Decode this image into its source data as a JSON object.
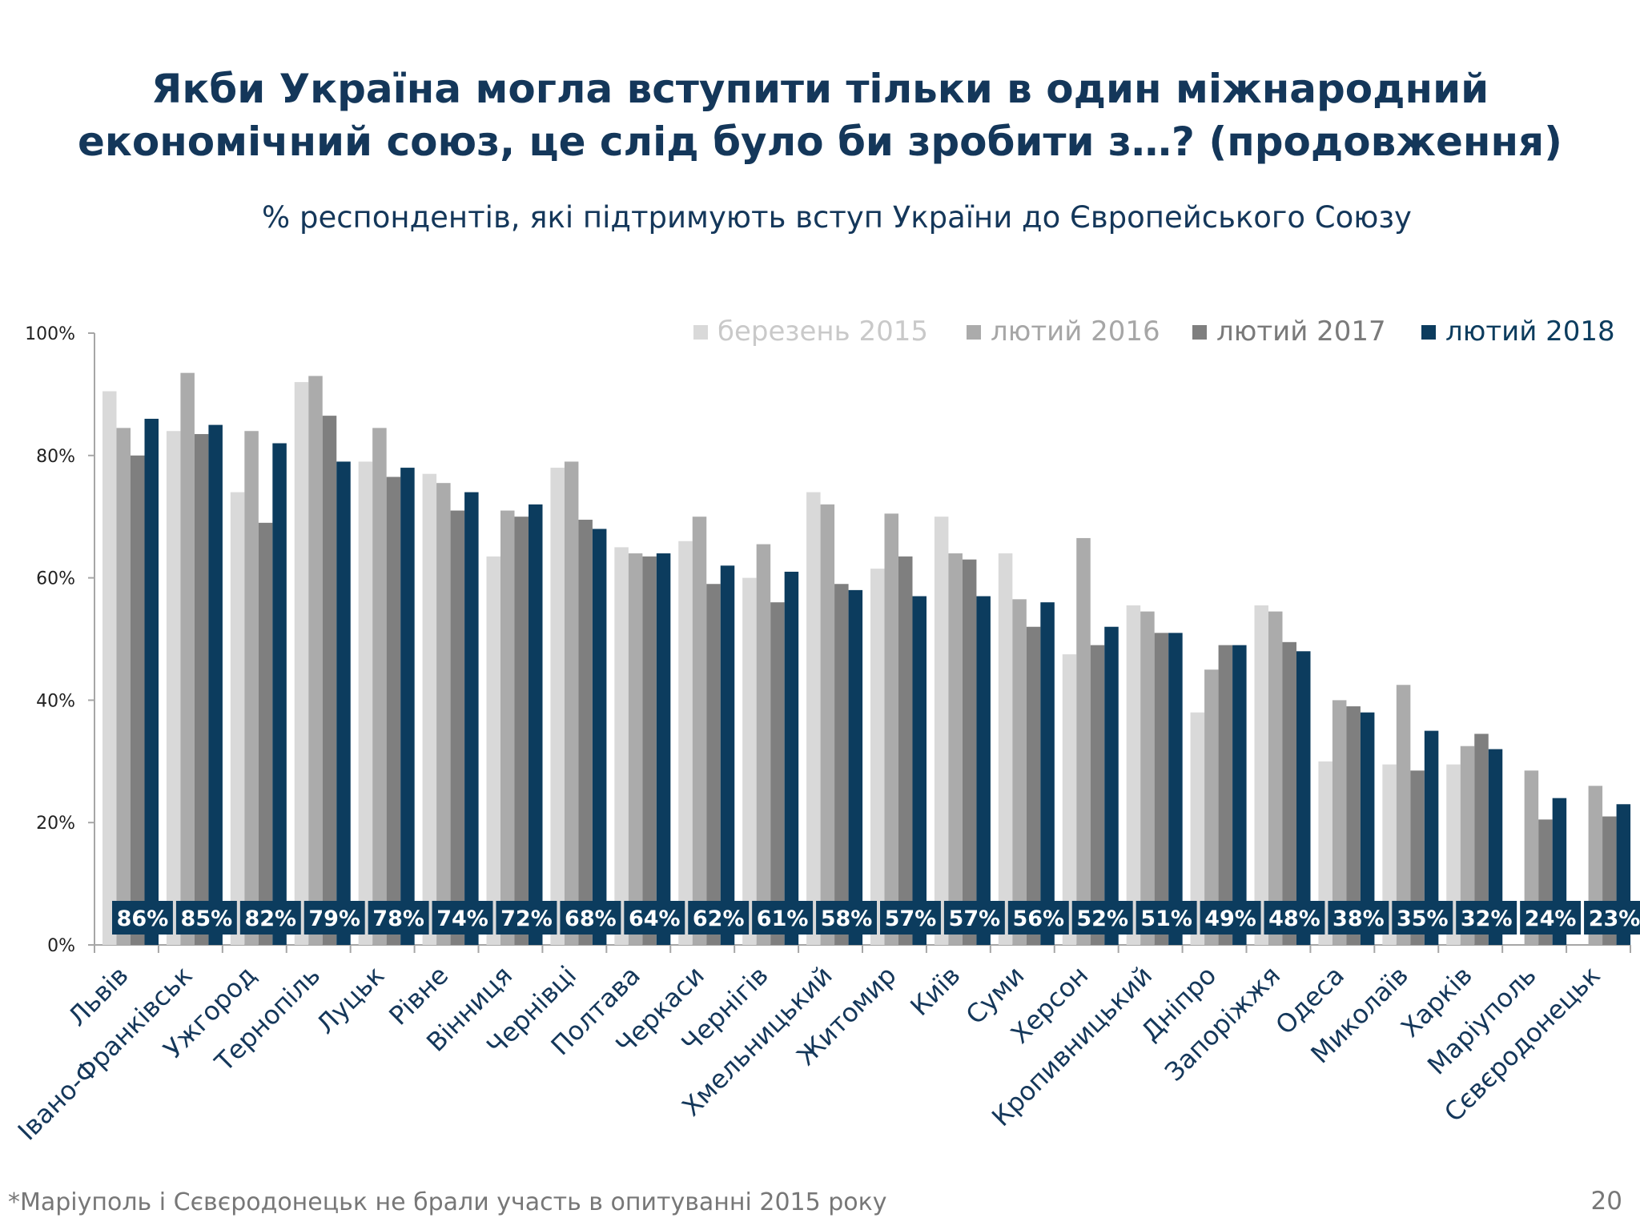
{
  "title_lines": [
    "Якби Україна могла вступити тільки в один міжнародний",
    "економічний союз, це слід було би зробити з…? (продовження)"
  ],
  "subtitle": "% респондентів, які підтримують вступ України до Європейського Союзу",
  "footnote": "*Маріуполь і Сєвєродонецьк не брали участь в опитуванні 2015 року",
  "page_number": "20",
  "colors": {
    "title": "#14375a",
    "series": [
      "#d9d9d9",
      "#ababab",
      "#7f7f7f",
      "#0c3c5e"
    ],
    "label_box": "#0c3c5e",
    "label_text": "#ffffff",
    "axis": "#a6a6a6"
  },
  "chart_data": {
    "type": "bar",
    "title": "% респондентів, які підтримують вступ України до Європейського Союзу",
    "ylim": [
      0,
      100
    ],
    "yticks": [
      "0%",
      "20%",
      "40%",
      "60%",
      "80%",
      "100%"
    ],
    "legend_position": "top-right",
    "categories": [
      "Львів",
      "Івано-Франківськ",
      "Ужгород",
      "Тернопіль",
      "Луцьк",
      "Рівне",
      "Вінниця",
      "Чернівці",
      "Полтава",
      "Черкаси",
      "Чернігів",
      "Хмельницький",
      "Житомир",
      "Київ",
      "Суми",
      "Херсон",
      "Кропивницький",
      "Дніпро",
      "Запоріжжя",
      "Одеса",
      "Миколаїв",
      "Харків",
      "Маріуполь",
      "Сєвєродонецьк"
    ],
    "series": [
      {
        "name": "березень 2015",
        "values": [
          90.5,
          84,
          74,
          92,
          79,
          77,
          63.5,
          78,
          65,
          66,
          60,
          74,
          61.5,
          70,
          64,
          47.5,
          55.5,
          38,
          55.5,
          30,
          29.5,
          29.5,
          null,
          null
        ]
      },
      {
        "name": "лютий 2016",
        "values": [
          84.5,
          93.5,
          84,
          93,
          84.5,
          75.5,
          71,
          79,
          64,
          70,
          65.5,
          72,
          70.5,
          64,
          56.5,
          66.5,
          54.5,
          45,
          54.5,
          40,
          42.5,
          32.5,
          28.5,
          26
        ]
      },
      {
        "name": "лютий 2017",
        "values": [
          80,
          83.5,
          69,
          86.5,
          76.5,
          71,
          70,
          69.5,
          63.5,
          59,
          56,
          59,
          63.5,
          63,
          52,
          49,
          51,
          49,
          49.5,
          39,
          28.5,
          34.5,
          20.5,
          21
        ]
      },
      {
        "name": "лютий 2018",
        "values": [
          86,
          85,
          82,
          79,
          78,
          74,
          72,
          68,
          64,
          62,
          61,
          58,
          57,
          57,
          56,
          52,
          51,
          49,
          48,
          38,
          35,
          32,
          24,
          23
        ]
      }
    ],
    "data_labels": [
      "86%",
      "85%",
      "82%",
      "79%",
      "78%",
      "74%",
      "72%",
      "68%",
      "64%",
      "62%",
      "61%",
      "58%",
      "57%",
      "57%",
      "56%",
      "52%",
      "51%",
      "49%",
      "48%",
      "38%",
      "35%",
      "32%",
      "24%",
      "23%"
    ]
  }
}
